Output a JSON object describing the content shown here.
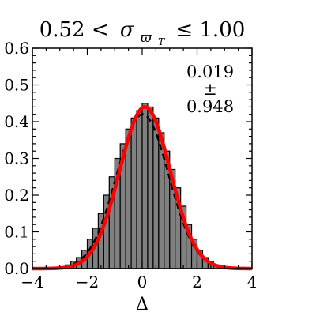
{
  "chart_data": {
    "type": "bar",
    "title_parts": {
      "lower": "0.52 <",
      "symbol": "σ",
      "subscript": "ϖ",
      "subsubscript": "T",
      "upper": "≤ 1.00"
    },
    "xlabel": "Δ",
    "ylabel": "",
    "xlim": [
      -4,
      4
    ],
    "ylim": [
      0,
      0.6
    ],
    "xticks": [
      "−4",
      "−2",
      "0",
      "2",
      "4"
    ],
    "yticks": [
      "0.0",
      "0.1",
      "0.2",
      "0.3",
      "0.4",
      "0.5",
      "0.6"
    ],
    "annotation": {
      "mean": "0.019",
      "pm": "±",
      "std": "0.948"
    },
    "histogram": {
      "fill_color": "#808080",
      "edge_color": "#000000",
      "bin_edges": [
        -2.8,
        -2.6,
        -2.4,
        -2.2,
        -2.0,
        -1.8,
        -1.6,
        -1.4,
        -1.2,
        -1.0,
        -0.8,
        -0.6,
        -0.4,
        -0.2,
        0.0,
        0.2,
        0.4,
        0.6,
        0.8,
        1.0,
        1.2,
        1.4,
        1.6,
        1.8,
        2.0,
        2.2,
        2.4,
        2.6,
        2.8
      ],
      "counts": [
        0.01,
        0.02,
        0.03,
        0.05,
        0.08,
        0.11,
        0.15,
        0.2,
        0.25,
        0.3,
        0.34,
        0.38,
        0.41,
        0.43,
        0.45,
        0.44,
        0.41,
        0.37,
        0.32,
        0.27,
        0.22,
        0.17,
        0.12,
        0.08,
        0.05,
        0.03,
        0.02,
        0.01
      ]
    },
    "series": [
      {
        "style": "dashed",
        "color": "#000000",
        "kind": "gaussian",
        "mean": 0.019,
        "sigma": 0.948,
        "amplitude": 0.42
      },
      {
        "style": "solid",
        "color": "#ff0000",
        "kind": "gaussian",
        "mean": 0.1,
        "sigma": 0.92,
        "amplitude": 0.44
      }
    ]
  }
}
